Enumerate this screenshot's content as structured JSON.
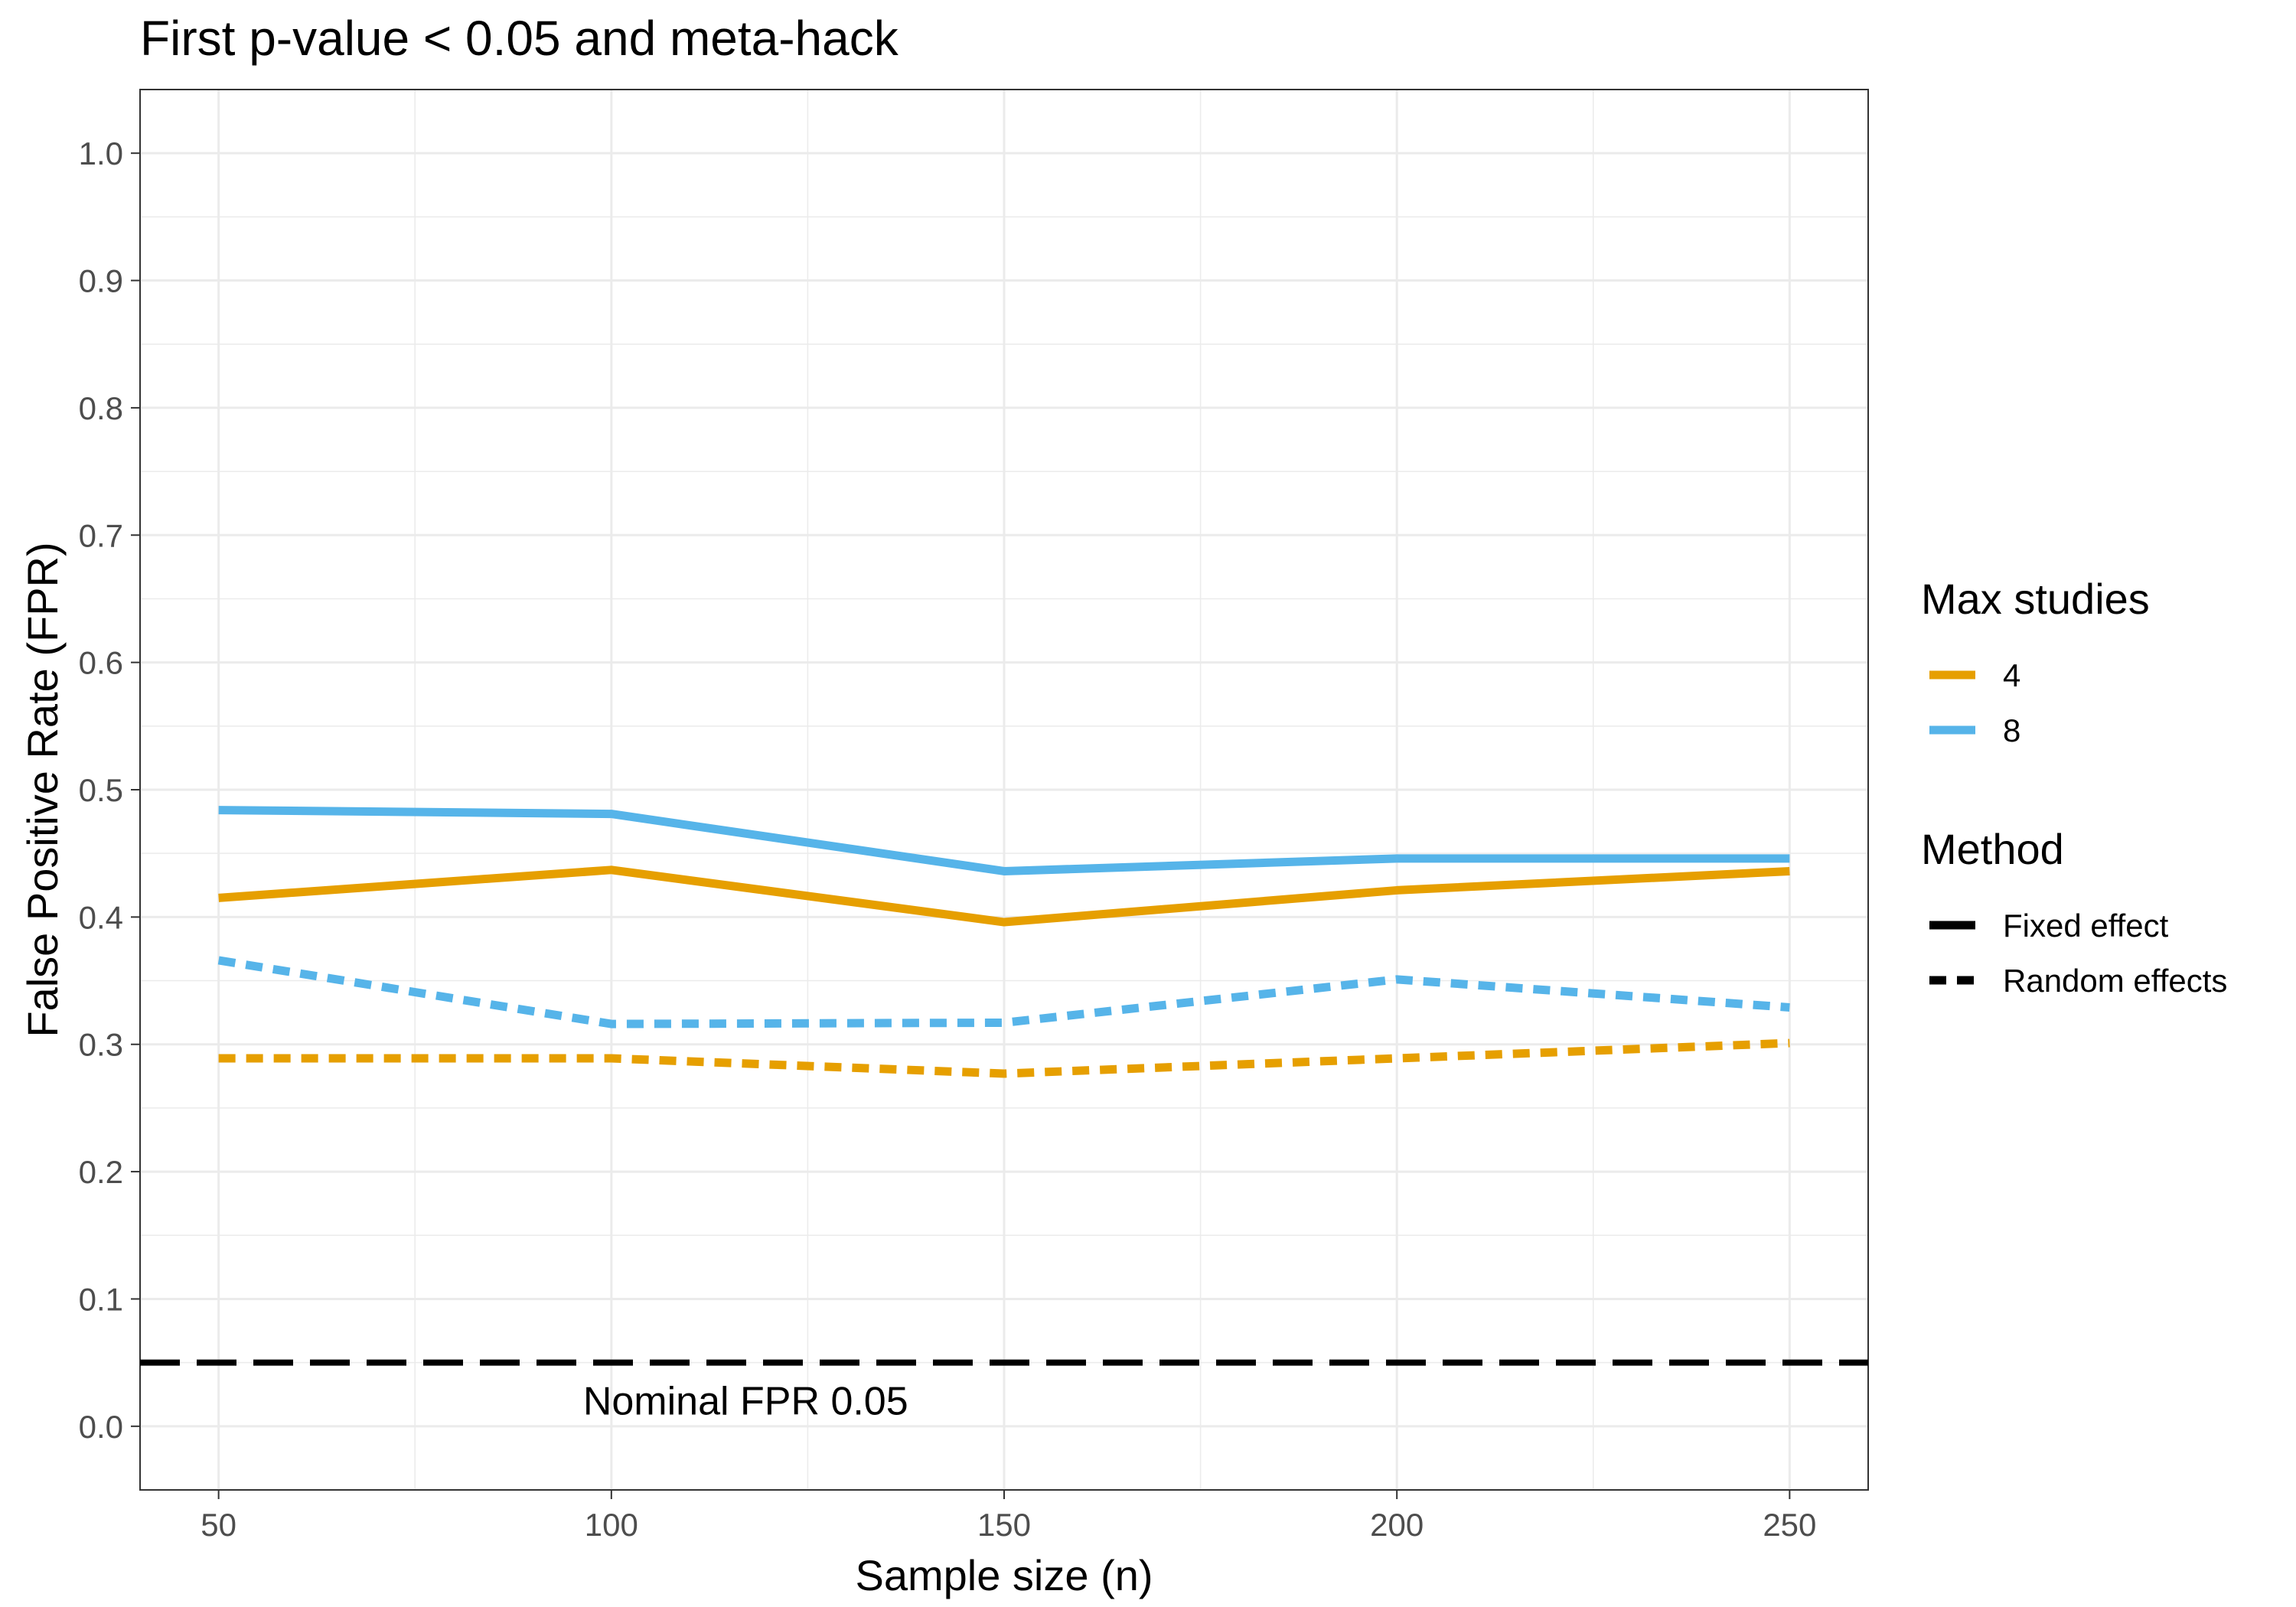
{
  "chart_data": {
    "type": "line",
    "title": "First p-value < 0.05 and meta-hack",
    "xlabel": "Sample size (n)",
    "ylabel": "False Positive Rate (FPR)",
    "x": [
      50,
      100,
      150,
      200,
      250
    ],
    "xlim": [
      40,
      260
    ],
    "ylim": [
      -0.05,
      1.05
    ],
    "xticks": [
      50,
      100,
      150,
      200,
      250
    ],
    "xtick_labels": [
      "50",
      "100",
      "150",
      "200",
      "250"
    ],
    "yticks": [
      0,
      0.1,
      0.2,
      0.3,
      0.4,
      0.5,
      0.6,
      0.7,
      0.8,
      0.9,
      1.0
    ],
    "ytick_labels": [
      "0.0",
      "0.1",
      "0.2",
      "0.3",
      "0.4",
      "0.5",
      "0.6",
      "0.7",
      "0.8",
      "0.9",
      "1.0"
    ],
    "grid": true,
    "series": [
      {
        "max_studies": "4",
        "method": "Fixed effect",
        "color": "#E69F00",
        "dash": "solid",
        "values": [
          0.415,
          0.437,
          0.396,
          0.421,
          0.436
        ]
      },
      {
        "max_studies": "8",
        "method": "Fixed effect",
        "color": "#56B4E9",
        "dash": "solid",
        "values": [
          0.484,
          0.481,
          0.436,
          0.446,
          0.446
        ]
      },
      {
        "max_studies": "4",
        "method": "Random effects",
        "color": "#E69F00",
        "dash": "dashed",
        "values": [
          0.289,
          0.289,
          0.277,
          0.289,
          0.301
        ]
      },
      {
        "max_studies": "8",
        "method": "Random effects",
        "color": "#56B4E9",
        "dash": "dashed",
        "values": [
          0.366,
          0.316,
          0.317,
          0.351,
          0.329
        ]
      }
    ],
    "reference_line": {
      "y": 0.05,
      "color": "#000000",
      "dash": "longdash"
    },
    "annotation": {
      "text": "Nominal FPR 0.05",
      "x": 100,
      "y": 0.02
    },
    "legend": {
      "placement": "right",
      "groups": [
        {
          "title": "Max studies",
          "entries": [
            {
              "label": "4",
              "color": "#E69F00",
              "dash": "solid"
            },
            {
              "label": "8",
              "color": "#56B4E9",
              "dash": "solid"
            }
          ]
        },
        {
          "title": "Method",
          "entries": [
            {
              "label": "Fixed effect",
              "color": "#000000",
              "dash": "solid"
            },
            {
              "label": "Random effects",
              "color": "#000000",
              "dash": "dashed"
            }
          ]
        }
      ]
    }
  }
}
